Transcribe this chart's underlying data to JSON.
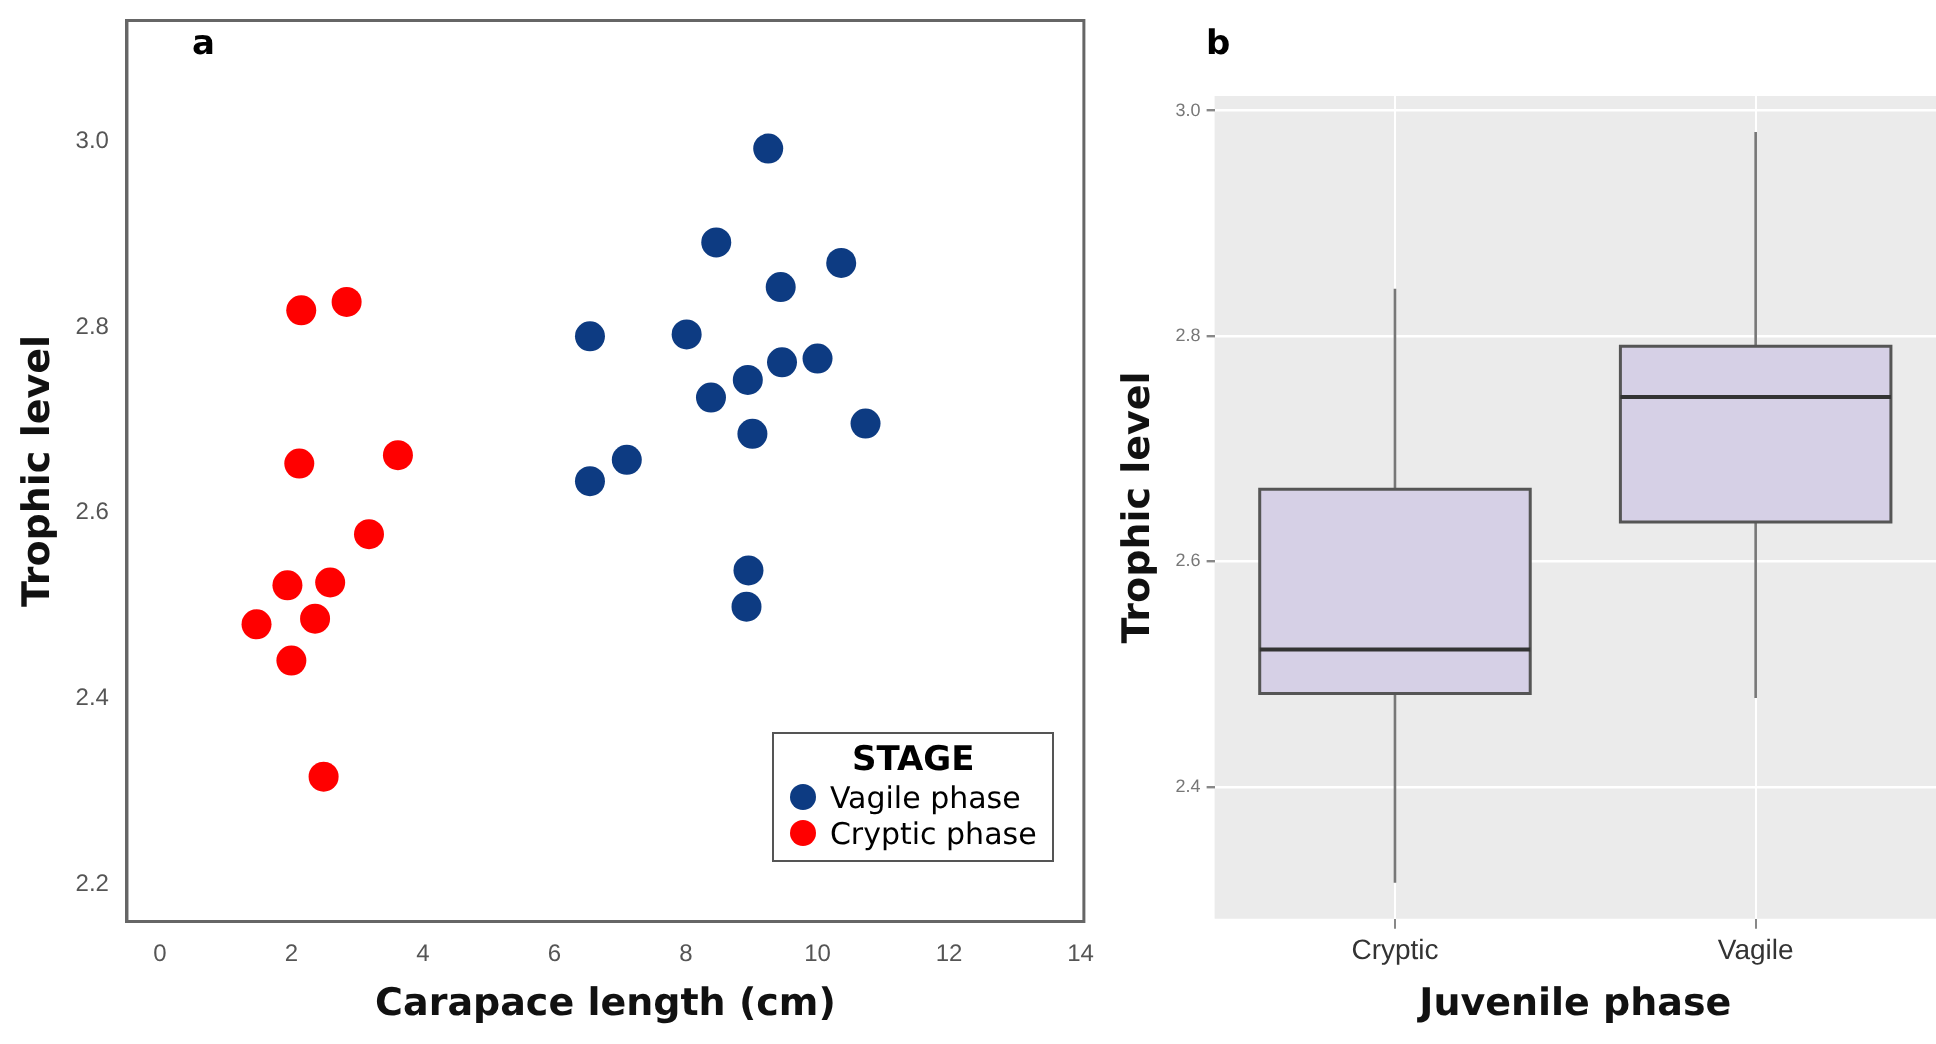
{
  "chart_data": [
    {
      "type": "scatter",
      "title": "a",
      "xlabel": "Carapace length (cm)",
      "ylabel": "Trophic level",
      "legend_title": "STAGE",
      "legend": "bottom right",
      "grid": false,
      "marker": "circle",
      "xlim": [
        -0.5,
        14.05
      ],
      "xticks": [
        0,
        2,
        4,
        6,
        8,
        10,
        12,
        14
      ],
      "ylim": [
        2.16,
        3.13
      ],
      "yticks": [
        2.2,
        2.4,
        2.6,
        2.8,
        {
          "value": 3,
          "label": "3.0"
        }
      ],
      "series": [
        {
          "name": "Vagile phase",
          "color": "#0d3b82",
          "x": [
            9.25,
            8.46,
            10.36,
            9.44,
            6.54,
            8.01,
            9.46,
            10.0,
            8.94,
            8.38,
            9.01,
            10.73,
            7.1,
            6.54,
            8.95,
            8.92
          ],
          "values": [
            2.992,
            2.891,
            2.869,
            2.843,
            2.79,
            2.792,
            2.762,
            2.766,
            2.743,
            2.724,
            2.685,
            2.696,
            2.657,
            2.634,
            2.538,
            2.499
          ]
        },
        {
          "name": "Cryptic phase",
          "color": "#ff0000",
          "x": [
            2.15,
            2.84,
            2.12,
            3.62,
            3.18,
            1.94,
            2.59,
            1.47,
            2.36,
            2.0,
            2.49
          ],
          "values": [
            2.818,
            2.827,
            2.653,
            2.662,
            2.577,
            2.522,
            2.525,
            2.48,
            2.486,
            2.441,
            2.316
          ]
        }
      ]
    },
    {
      "type": "box",
      "title": "b",
      "xlabel": "Juvenile phase",
      "ylabel": "Trophic level",
      "grid": true,
      "legend": false,
      "categories": [
        "Cryptic",
        "Vagile"
      ],
      "ylim": [
        2.283,
        3.013
      ],
      "yticks": [
        2.4,
        2.6,
        2.8,
        {
          "value": 3,
          "label": "3.0"
        }
      ],
      "series": [
        {
          "color": "#d6d0e6",
          "boxes": [
            {
              "low": 2.315,
              "q1": 2.483,
              "median": 2.522,
              "q3": 2.664,
              "high": 2.842
            },
            {
              "low": 2.479,
              "q1": 2.635,
              "median": 2.746,
              "q3": 2.791,
              "high": 2.981
            }
          ]
        }
      ]
    }
  ]
}
